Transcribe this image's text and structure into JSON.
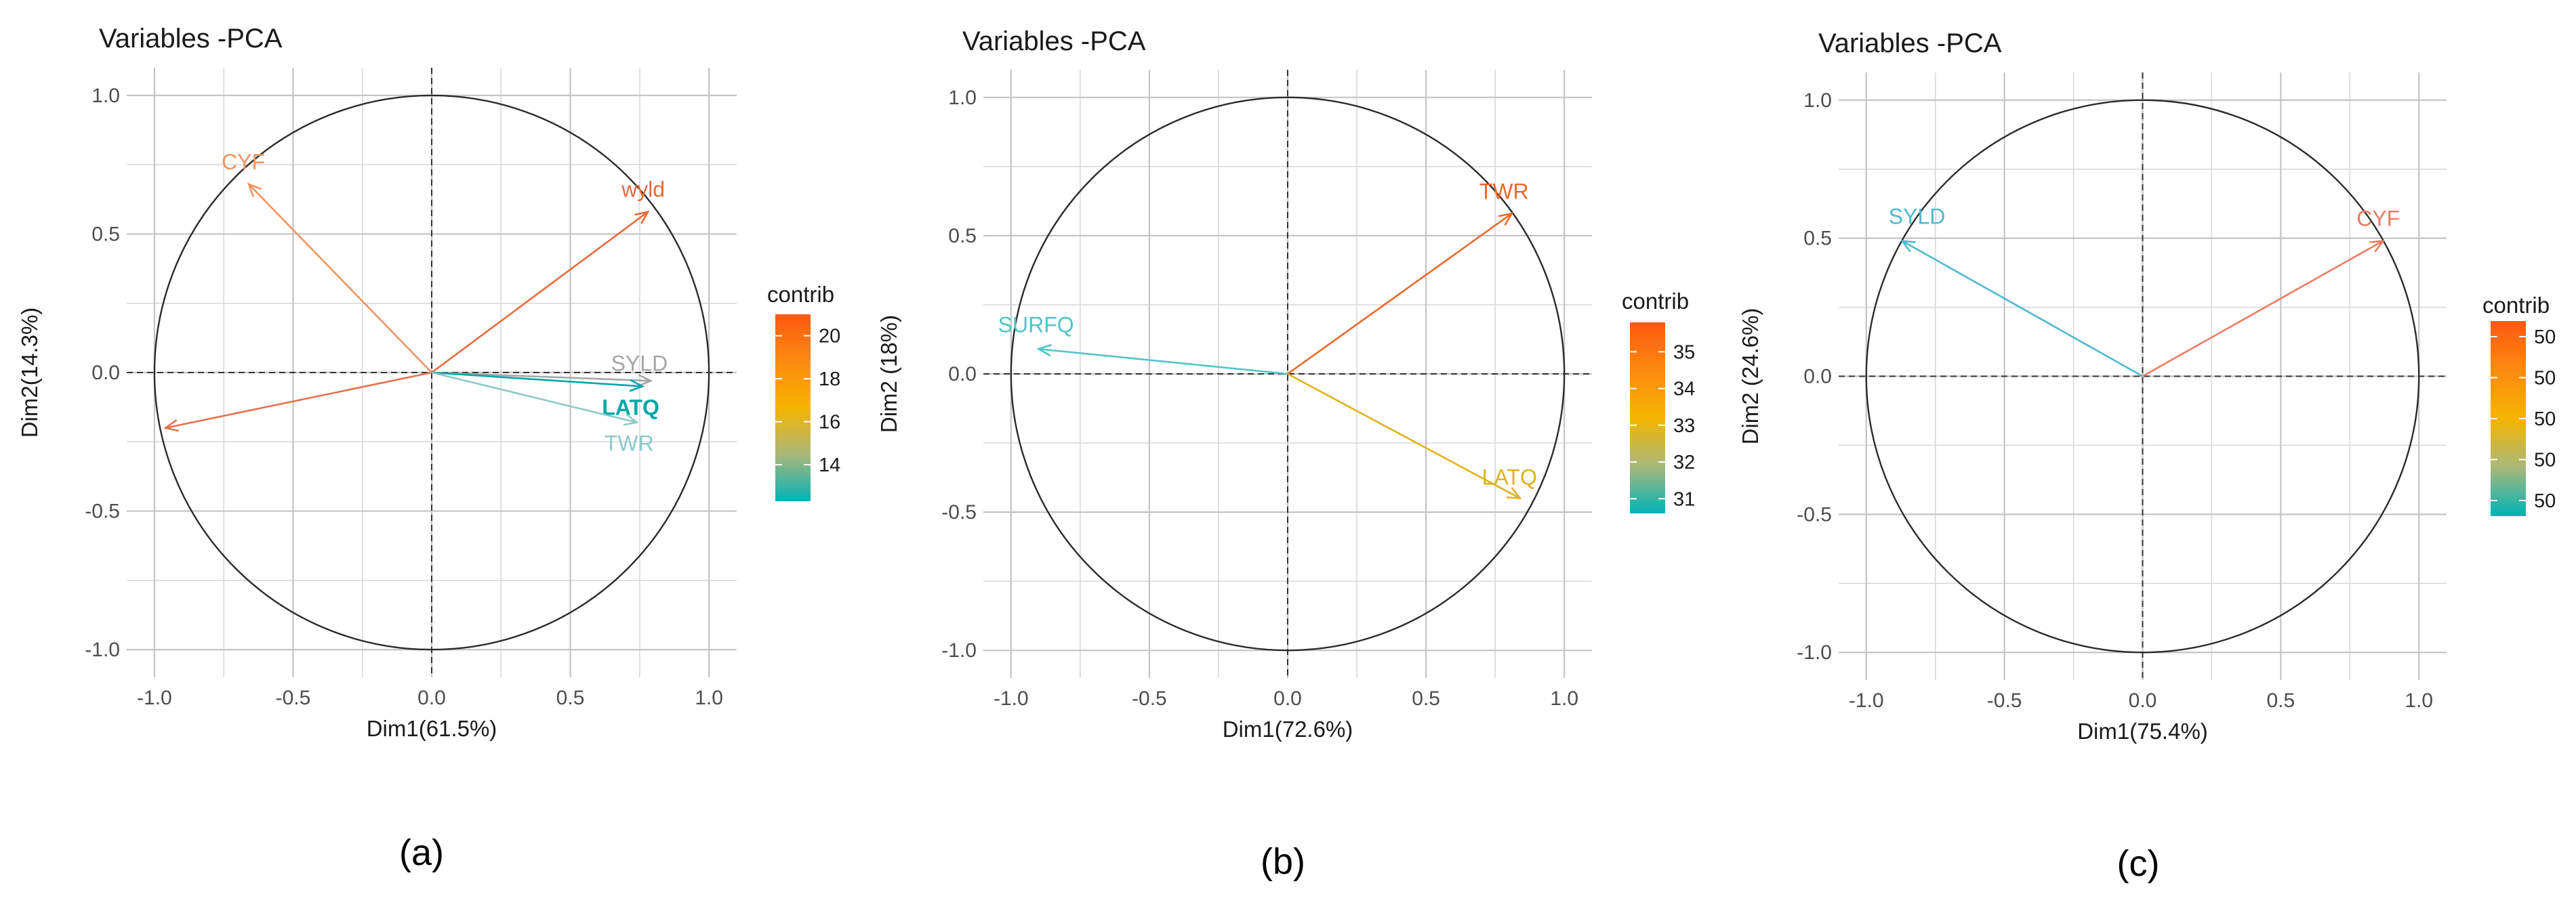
{
  "chart_data": [
    {
      "type": "pca-variable-correlation-circle",
      "title": "Variables -PCA",
      "xlabel": "Dim1(61.5%)",
      "ylabel": "Dim2(14.3%)",
      "xlim": [
        -1.1,
        1.1
      ],
      "ylim": [
        -1.1,
        1.1
      ],
      "x_ticks": [
        -1.0,
        -0.5,
        0.0,
        0.5,
        1.0
      ],
      "x_tick_labels": [
        "-1.0",
        "-0.5",
        "0.0",
        "0.5",
        "1.0"
      ],
      "y_ticks": [
        -1.0,
        -0.5,
        0.0,
        0.5,
        1.0
      ],
      "y_tick_labels": [
        "-1.0",
        "-0.5",
        "0.0",
        "0.5",
        "1.0"
      ],
      "caption": "(a)",
      "legend": {
        "title": "contrib",
        "min": 12.3,
        "max": 21,
        "ticks": [
          20,
          18,
          16,
          14
        ],
        "tick_labels": [
          "20",
          "18",
          "16",
          "14"
        ]
      },
      "variables": [
        {
          "name": "CYF",
          "x": -0.66,
          "y": 0.68,
          "contrib": 17.2,
          "color": "#ee9460",
          "bold": false
        },
        {
          "name": "wyld",
          "x": 0.78,
          "y": 0.58,
          "contrib": 19.0,
          "color": "#e86a3c",
          "bold": false
        },
        {
          "name": "SYLD",
          "x": 0.79,
          "y": -0.03,
          "contrib": 13.6,
          "color": "#a6a6a6",
          "bold": false
        },
        {
          "name": "LATQ",
          "x": 0.76,
          "y": -0.05,
          "contrib": 12.5,
          "color": "#00a7a7",
          "bold": true
        },
        {
          "name": "TWR",
          "x": 0.74,
          "y": -0.18,
          "contrib": 13.0,
          "color": "#8cc9c7",
          "bold": false
        },
        {
          "name": "",
          "x": -0.96,
          "y": -0.2,
          "contrib": 20.5,
          "color": "#e4724e",
          "bold": false
        }
      ]
    },
    {
      "type": "pca-variable-correlation-circle",
      "title": "Variables -PCA",
      "xlabel": "Dim1(72.6%)",
      "ylabel": "Dim2 (18%)",
      "xlim": [
        -1.1,
        1.1
      ],
      "ylim": [
        -1.1,
        1.1
      ],
      "x_ticks": [
        -1.0,
        -0.5,
        0.0,
        0.5,
        1.0
      ],
      "x_tick_labels": [
        "-1.0",
        "-0.5",
        "0.0",
        "0.5",
        "1.0"
      ],
      "y_ticks": [
        -1.0,
        -0.5,
        0.0,
        0.5,
        1.0
      ],
      "y_tick_labels": [
        "-1.0",
        "-0.5",
        "0.0",
        "0.5",
        "1.0"
      ],
      "caption": "(b)",
      "legend": {
        "title": "contrib",
        "min": 30.6,
        "max": 35.8,
        "ticks": [
          35,
          34,
          33,
          32,
          31
        ],
        "tick_labels": [
          "35",
          "34",
          "33",
          "32",
          "31"
        ]
      },
      "variables": [
        {
          "name": "TWR",
          "x": 0.81,
          "y": 0.58,
          "contrib": 35.6,
          "color": "#e9692a",
          "bold": false
        },
        {
          "name": "SURFQ",
          "x": -0.9,
          "y": 0.09,
          "contrib": 30.9,
          "color": "#4fc4c8",
          "bold": false
        },
        {
          "name": "LATQ",
          "x": 0.84,
          "y": -0.45,
          "contrib": 33.5,
          "color": "#e0b21c",
          "bold": false
        }
      ]
    },
    {
      "type": "pca-variable-correlation-circle",
      "title": "Variables -PCA",
      "xlabel": "Dim1(75.4%)",
      "ylabel": "Dim2 (24.6%)",
      "xlim": [
        -1.1,
        1.1
      ],
      "ylim": [
        -1.1,
        1.1
      ],
      "x_ticks": [
        -1.0,
        -0.5,
        0.0,
        0.5,
        1.0
      ],
      "x_tick_labels": [
        "-1.0",
        "-0.5",
        "0.0",
        "0.5",
        "1.0"
      ],
      "y_ticks": [
        -1.0,
        -0.5,
        0.0,
        0.5,
        1.0
      ],
      "y_tick_labels": [
        "-1.0",
        "-0.5",
        "0.0",
        "0.5",
        "1.0"
      ],
      "caption": "(c)",
      "legend": {
        "title": "contrib",
        "min": 0,
        "max": 1,
        "ticks": [
          0.92,
          0.71,
          0.5,
          0.29,
          0.08
        ],
        "tick_labels": [
          "50",
          "50",
          "50",
          "50",
          "50"
        ]
      },
      "variables": [
        {
          "name": "SYLD",
          "x": -0.87,
          "y": 0.49,
          "contrib": 0.0,
          "color": "#4fb8cc",
          "bold": false
        },
        {
          "name": "CYF",
          "x": 0.87,
          "y": 0.49,
          "contrib": 1.0,
          "color": "#ee7b62",
          "bold": false
        }
      ]
    }
  ]
}
